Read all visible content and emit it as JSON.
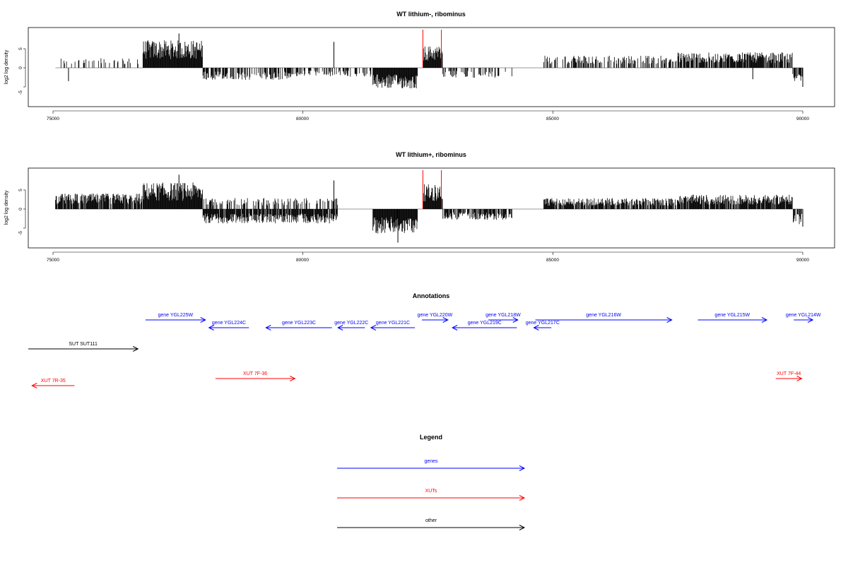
{
  "chart_data": [
    {
      "type": "bar",
      "title": "WT lithium-, ribominus",
      "ylabel": "log2 log density",
      "xlabel": "",
      "xlim": [
        75000,
        90000
      ],
      "ylim": [
        -9,
        10
      ],
      "xticks": [
        "75000",
        "80000",
        "85000",
        "90000"
      ],
      "yticks": [
        "-5",
        "0",
        "5"
      ],
      "marker_color": "#ff0000",
      "marker_positions": [
        82400,
        82770
      ],
      "coverage_regions": [
        {
          "start": 75100,
          "end": 76800,
          "sign": 1,
          "mean": 1.8,
          "density": 0.25
        },
        {
          "start": 76800,
          "end": 78000,
          "sign": 1,
          "mean": 5.0,
          "density": 1.0
        },
        {
          "start": 78000,
          "end": 79800,
          "sign": -1,
          "mean": 2.2,
          "density": 0.55
        },
        {
          "start": 79800,
          "end": 81400,
          "sign": -1,
          "mean": 1.6,
          "density": 0.35
        },
        {
          "start": 81400,
          "end": 82300,
          "sign": -1,
          "mean": 3.8,
          "density": 1.0
        },
        {
          "start": 82400,
          "end": 82800,
          "sign": 1,
          "mean": 4.0,
          "density": 1.0
        },
        {
          "start": 82800,
          "end": 84200,
          "sign": -1,
          "mean": 1.8,
          "density": 0.3
        },
        {
          "start": 84800,
          "end": 87500,
          "sign": 1,
          "mean": 2.2,
          "density": 0.4
        },
        {
          "start": 87500,
          "end": 89800,
          "sign": 1,
          "mean": 2.8,
          "density": 0.8
        },
        {
          "start": 89800,
          "end": 90000,
          "sign": -1,
          "mean": 2.5,
          "density": 0.6
        }
      ],
      "spikes": [
        {
          "x": 75310,
          "y": -3.5
        },
        {
          "x": 77520,
          "y": 9.0
        },
        {
          "x": 80620,
          "y": 6.8
        },
        {
          "x": 89000,
          "y": -3.0
        },
        {
          "x": 90000,
          "y": -5.0
        }
      ]
    },
    {
      "type": "bar",
      "title": "WT lithium+, ribominus",
      "ylabel": "log2 log density",
      "xlabel": "",
      "xlim": [
        75000,
        90000
      ],
      "ylim": [
        -9,
        10
      ],
      "xticks": [
        "75000",
        "80000",
        "85000",
        "90000"
      ],
      "yticks": [
        "-5",
        "0",
        "5"
      ],
      "marker_color": "#ff0000",
      "marker_positions": [
        82400,
        82770
      ],
      "coverage_regions": [
        {
          "start": 75050,
          "end": 76800,
          "sign": 1,
          "mean": 2.8,
          "density": 0.85
        },
        {
          "start": 76800,
          "end": 78000,
          "sign": 1,
          "mean": 4.8,
          "density": 1.0
        },
        {
          "start": 78000,
          "end": 80700,
          "sign": -1,
          "mean": 2.6,
          "density": 0.9
        },
        {
          "start": 78000,
          "end": 80700,
          "sign": 1,
          "mean": 2.0,
          "density": 0.35
        },
        {
          "start": 81400,
          "end": 82300,
          "sign": -1,
          "mean": 4.5,
          "density": 1.0
        },
        {
          "start": 82400,
          "end": 82800,
          "sign": 1,
          "mean": 4.5,
          "density": 1.0
        },
        {
          "start": 82800,
          "end": 84200,
          "sign": -1,
          "mean": 2.0,
          "density": 0.7
        },
        {
          "start": 84800,
          "end": 87500,
          "sign": 1,
          "mean": 2.0,
          "density": 0.75
        },
        {
          "start": 87500,
          "end": 89800,
          "sign": 1,
          "mean": 2.6,
          "density": 0.9
        },
        {
          "start": 89800,
          "end": 90000,
          "sign": -1,
          "mean": 2.8,
          "density": 0.7
        }
      ],
      "spikes": [
        {
          "x": 77520,
          "y": 9.0
        },
        {
          "x": 80620,
          "y": 7.5
        },
        {
          "x": 81900,
          "y": -8.8
        },
        {
          "x": 90000,
          "y": -4.6
        }
      ]
    }
  ],
  "annotations": {
    "title": "Annotations",
    "features": [
      {
        "label": "gene YGL225W",
        "start": 76850,
        "end": 78050,
        "strand": "+",
        "track": 0,
        "color": "#0000ff"
      },
      {
        "label": "gene YGL224C",
        "start": 78120,
        "end": 78920,
        "strand": "-",
        "track": 1,
        "color": "#0000ff"
      },
      {
        "label": "gene YGL223C",
        "start": 79260,
        "end": 80580,
        "strand": "-",
        "track": 1,
        "color": "#0000ff"
      },
      {
        "label": "gene YGL222C",
        "start": 80700,
        "end": 81240,
        "strand": "-",
        "track": 1,
        "color": "#0000ff"
      },
      {
        "label": "gene YGL221C",
        "start": 81360,
        "end": 82240,
        "strand": "-",
        "track": 1,
        "color": "#0000ff"
      },
      {
        "label": "gene YGL220W",
        "start": 82380,
        "end": 82900,
        "strand": "+",
        "track": 0,
        "color": "#0000ff"
      },
      {
        "label": "gene YGL219C",
        "start": 82990,
        "end": 84280,
        "strand": "-",
        "track": 1,
        "color": "#0000ff"
      },
      {
        "label": "gene YGL218W",
        "start": 83710,
        "end": 84300,
        "strand": "+",
        "track": 0,
        "color": "#0000ff"
      },
      {
        "label": "gene YGL217C",
        "start": 84620,
        "end": 84970,
        "strand": "-",
        "track": 1,
        "color": "#0000ff"
      },
      {
        "label": "gene YGL216W",
        "start": 84650,
        "end": 87380,
        "strand": "+",
        "track": 0,
        "color": "#0000ff"
      },
      {
        "label": "gene YGL215W",
        "start": 87900,
        "end": 89280,
        "strand": "+",
        "track": 0,
        "color": "#0000ff"
      },
      {
        "label": "gene YGL214W",
        "start": 89820,
        "end": 90200,
        "strand": "+",
        "track": 0,
        "color": "#0000ff"
      },
      {
        "label": "SUT SUT111",
        "start": 73850,
        "end": 76700,
        "strand": "+",
        "track": 2,
        "color": "#000000"
      },
      {
        "label": "XUT 7R-35",
        "start": 74580,
        "end": 75430,
        "strand": "-",
        "track": 4,
        "color": "#ff0000"
      },
      {
        "label": "XUT 7F-36",
        "start": 78250,
        "end": 79840,
        "strand": "+",
        "track": 3,
        "color": "#ff0000"
      },
      {
        "label": "XUT 7F-44",
        "start": 89460,
        "end": 89980,
        "strand": "+",
        "track": 3,
        "color": "#ff0000"
      }
    ]
  },
  "legend": {
    "title": "Legend",
    "items": [
      {
        "label": "genes",
        "color": "#0000ff"
      },
      {
        "label": "XUTs",
        "color": "#ff0000"
      },
      {
        "label": "other",
        "color": "#000000"
      }
    ]
  }
}
